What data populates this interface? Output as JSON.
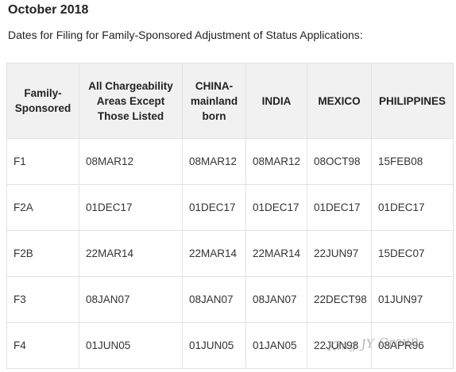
{
  "page": {
    "title": "October 2018",
    "subtitle": "Dates for Filing for Family-Sponsored Adjustment of Status Applications:"
  },
  "table": {
    "headers": [
      "Family-Sponsored",
      "All Chargeability Areas Except Those Listed",
      "CHINA-mainland born",
      "INDIA",
      "MEXICO",
      "PHILIPPINES"
    ],
    "rows": [
      [
        "F1",
        "08MAR12",
        "08MAR12",
        "08MAR12",
        "08OCT98",
        "15FEB08"
      ],
      [
        "F2A",
        "01DEC17",
        "01DEC17",
        "01DEC17",
        "01DEC17",
        "01DEC17"
      ],
      [
        "F2B",
        "22MAR14",
        "22MAR14",
        "22MAR14",
        "22JUN97",
        "15DEC07"
      ],
      [
        "F3",
        "08JAN07",
        "08JAN07",
        "08JAN07",
        "22DECT98",
        "01JUN97"
      ],
      [
        "F4",
        "01JUN05",
        "01JUN05",
        "01JAN05",
        "22JUN98",
        "08APR96"
      ]
    ]
  },
  "watermark": {
    "text": "King JY Group"
  }
}
